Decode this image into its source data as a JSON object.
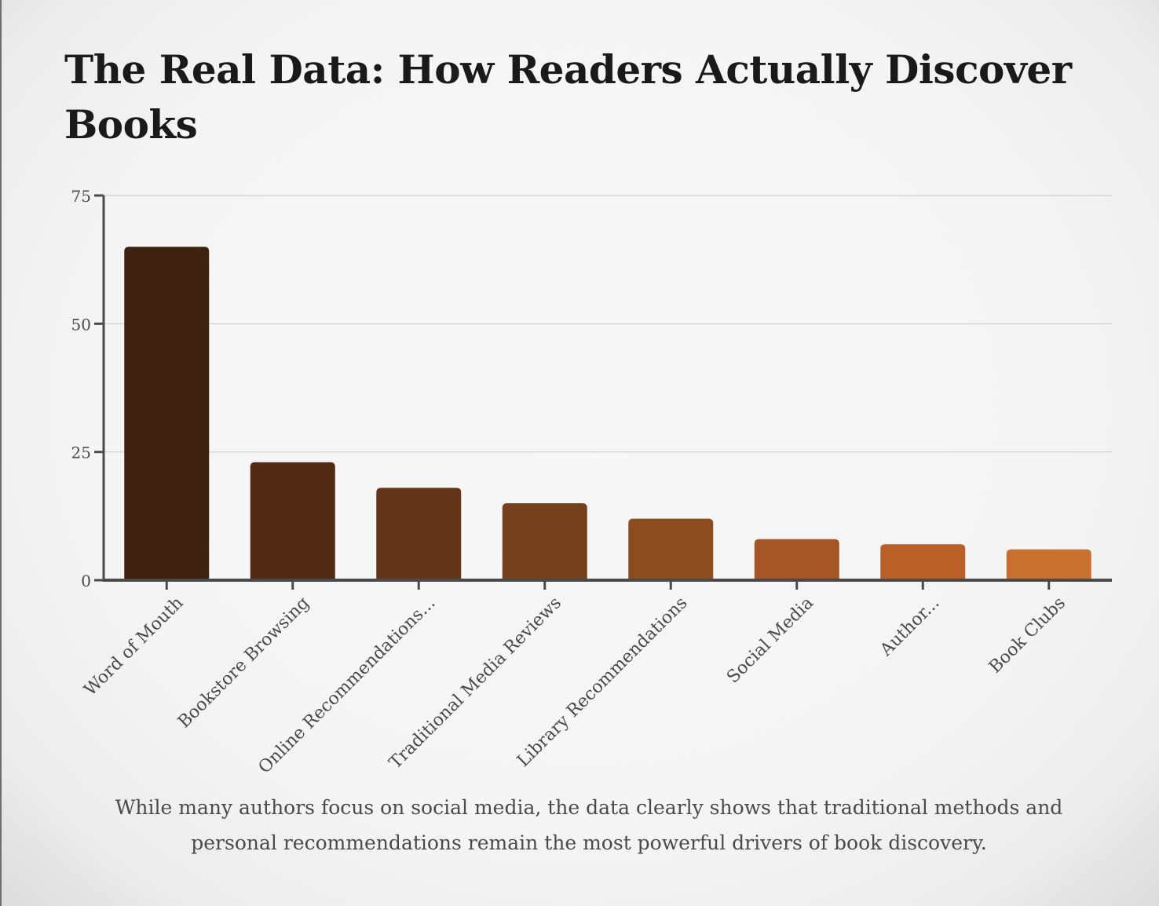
{
  "chart_data": {
    "type": "bar",
    "title": "The Real Data: How Readers Actually Discover Books",
    "categories": [
      "Word of Mouth",
      "Bookstore Browsing",
      "Online Recommendations...",
      "Traditional Media Reviews",
      "Library Recommendations",
      "Social Media",
      "Author...",
      "Book Clubs"
    ],
    "values": [
      65,
      23,
      18,
      15,
      12,
      8,
      7,
      6
    ],
    "colors": [
      "#3d2212",
      "#522a15",
      "#643518",
      "#77401c",
      "#8b4d20",
      "#a35624",
      "#b86027",
      "#c8702f"
    ],
    "ylim": [
      0,
      75
    ],
    "yticks": [
      0,
      25,
      50,
      75
    ],
    "grid": true,
    "xlabel": "",
    "ylabel": ""
  },
  "caption": "While many authors focus on social media, the data clearly shows that traditional methods and personal recommendations remain the most powerful drivers of book discovery.",
  "colors": {
    "axis": "#4a4a4a",
    "grid": "#d6d6d6",
    "tick_text": "#4a4a4a"
  }
}
